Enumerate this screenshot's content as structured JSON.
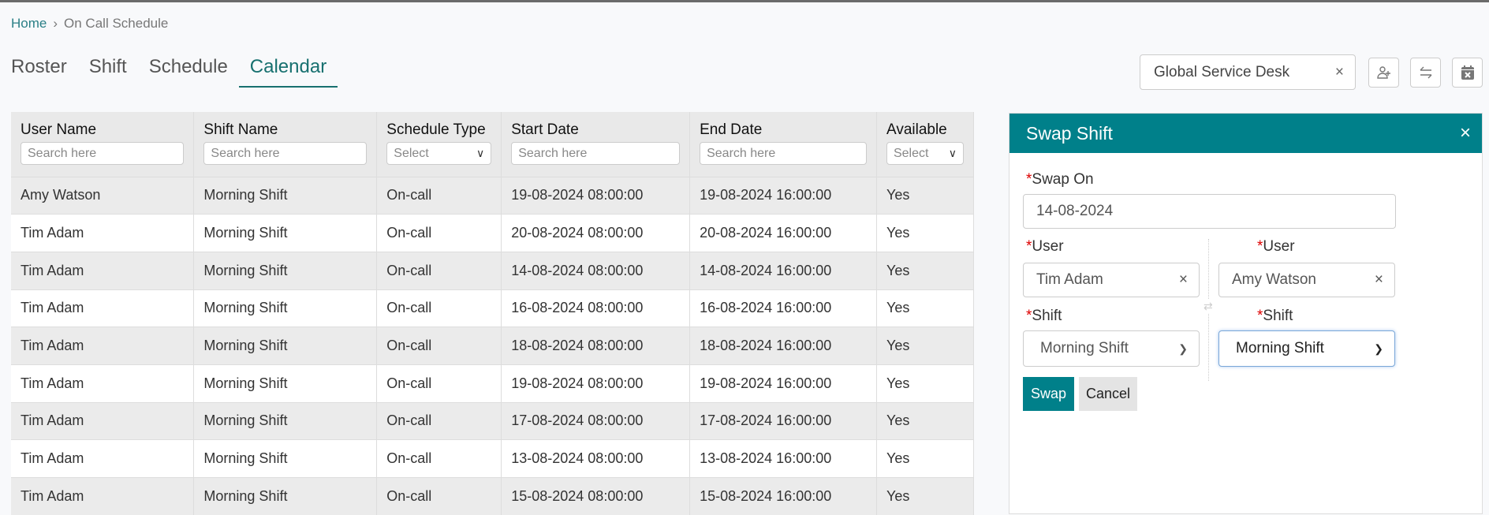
{
  "breadcrumb": {
    "home": "Home",
    "separator": "›",
    "current": "On Call Schedule"
  },
  "tabs": [
    {
      "label": "Roster"
    },
    {
      "label": "Shift"
    },
    {
      "label": "Schedule"
    },
    {
      "label": "Calendar",
      "active": true
    }
  ],
  "toolbar": {
    "group_value": "Global Service Desk",
    "clear": "×",
    "icons": [
      "add-user-icon",
      "swap-icon",
      "calendar-remove-icon"
    ]
  },
  "table": {
    "columns": [
      {
        "label": "User Name",
        "filter": "Search here",
        "type": "text"
      },
      {
        "label": "Shift Name",
        "filter": "Search here",
        "type": "text"
      },
      {
        "label": "Schedule Type",
        "filter": "Select",
        "type": "select"
      },
      {
        "label": "Start Date",
        "filter": "Search here",
        "type": "text"
      },
      {
        "label": "End Date",
        "filter": "Search here",
        "type": "text"
      },
      {
        "label": "Available",
        "filter": "Select",
        "type": "select"
      }
    ],
    "rows": [
      [
        "Amy Watson",
        "Morning Shift",
        "On-call",
        "19-08-2024 08:00:00",
        "19-08-2024 16:00:00",
        "Yes"
      ],
      [
        "Tim Adam",
        "Morning Shift",
        "On-call",
        "20-08-2024 08:00:00",
        "20-08-2024 16:00:00",
        "Yes"
      ],
      [
        "Tim Adam",
        "Morning Shift",
        "On-call",
        "14-08-2024 08:00:00",
        "14-08-2024 16:00:00",
        "Yes"
      ],
      [
        "Tim Adam",
        "Morning Shift",
        "On-call",
        "16-08-2024 08:00:00",
        "16-08-2024 16:00:00",
        "Yes"
      ],
      [
        "Tim Adam",
        "Morning Shift",
        "On-call",
        "18-08-2024 08:00:00",
        "18-08-2024 16:00:00",
        "Yes"
      ],
      [
        "Tim Adam",
        "Morning Shift",
        "On-call",
        "19-08-2024 08:00:00",
        "19-08-2024 16:00:00",
        "Yes"
      ],
      [
        "Tim Adam",
        "Morning Shift",
        "On-call",
        "17-08-2024 08:00:00",
        "17-08-2024 16:00:00",
        "Yes"
      ],
      [
        "Tim Adam",
        "Morning Shift",
        "On-call",
        "13-08-2024 08:00:00",
        "13-08-2024 16:00:00",
        "Yes"
      ],
      [
        "Tim Adam",
        "Morning Shift",
        "On-call",
        "15-08-2024 08:00:00",
        "15-08-2024 16:00:00",
        "Yes"
      ]
    ]
  },
  "panel": {
    "title": "Swap Shift",
    "close": "×",
    "required": "*",
    "swap_on_label": "Swap On",
    "swap_on_value": "14-08-2024",
    "user_label": "User",
    "shift_label": "Shift",
    "left": {
      "user": "Tim Adam",
      "shift": "Morning Shift"
    },
    "right": {
      "user": "Amy Watson",
      "shift": "Morning Shift"
    },
    "clear": "×",
    "chevron": "⌄",
    "swap_glyph": "⇄",
    "swap_button": "Swap",
    "cancel_button": "Cancel"
  },
  "colors": {
    "accent": "#00808a",
    "tab_active": "#17706f",
    "required": "#dd0000"
  }
}
